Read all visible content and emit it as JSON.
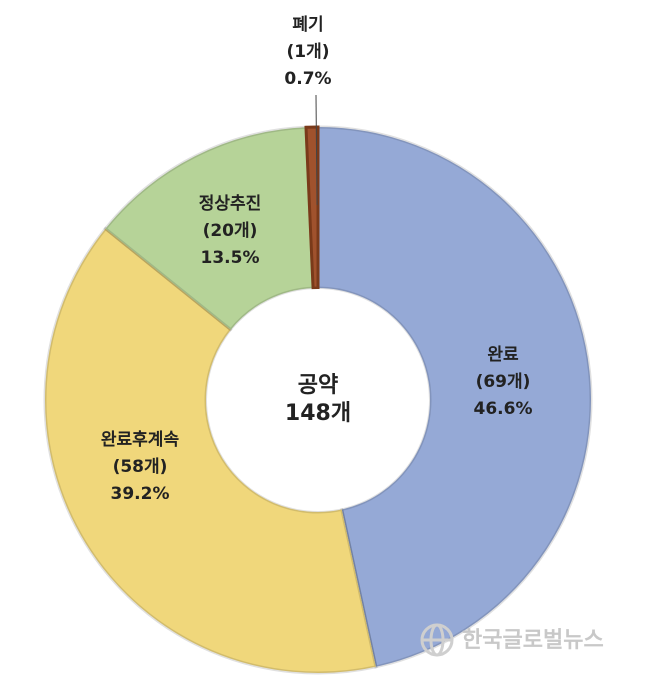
{
  "chart_data": {
    "type": "donut",
    "categories": [
      "완료",
      "완료후계속",
      "정상추진",
      "폐기"
    ],
    "count_labels": [
      "(69개)",
      "(58개)",
      "(20개)",
      "(1개)"
    ],
    "values": [
      46.6,
      39.2,
      13.5,
      0.7
    ],
    "value_labels": [
      "46.6%",
      "39.2%",
      "13.5%",
      "0.7%"
    ],
    "colors": [
      "#95a9d6",
      "#f0d77b",
      "#b6d398",
      "#a0522d"
    ],
    "center_label": [
      "공약",
      "148개"
    ]
  },
  "watermark": "한국글로벌뉴스"
}
